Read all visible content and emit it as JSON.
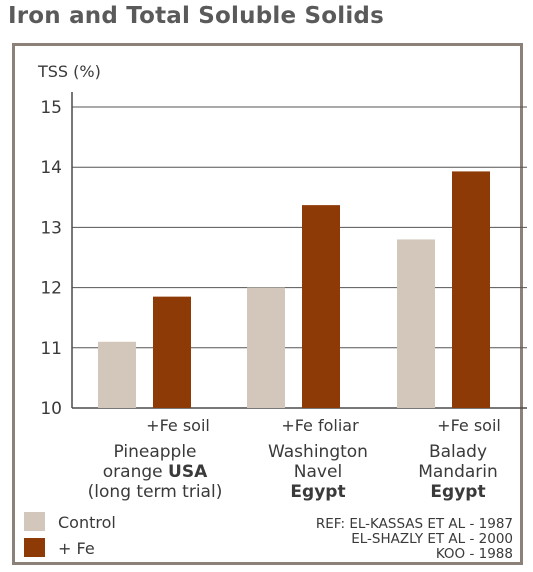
{
  "page_title": "Iron and Total Soluble Solids",
  "colors": {
    "control": "#d2c7ba",
    "fe": "#8e3a07",
    "axis": "#4a4a4a",
    "grid": "#555555",
    "frame": "#8c8179"
  },
  "chart_data": {
    "type": "bar",
    "ylabel": "TSS (%)",
    "ylim": [
      10,
      15
    ],
    "yticks": [
      10,
      11,
      12,
      13,
      14,
      15
    ],
    "grid": true,
    "groups": [
      {
        "treatment": "+Fe soil",
        "line1": "Pineapple",
        "line2_pre": "orange ",
        "line2_bold": "USA",
        "line3": "(long term trial)",
        "line3_bold": false
      },
      {
        "treatment": "+Fe foliar",
        "line1": "Washington",
        "line2_pre": "Navel",
        "line2_bold": "",
        "line3": "Egypt",
        "line3_bold": true
      },
      {
        "treatment": "+Fe soil",
        "line1": "Balady",
        "line2_pre": "Mandarin",
        "line2_bold": "",
        "line3": "Egypt",
        "line3_bold": true
      }
    ],
    "series": [
      {
        "name": "Control",
        "values": [
          11.1,
          12.0,
          12.8
        ]
      },
      {
        "name": "+ Fe",
        "values": [
          11.85,
          13.37,
          13.93
        ]
      }
    ],
    "legend_position": "bottom-left",
    "references": [
      "REF: EL-KASSAS ET AL - 1987",
      "EL-SHAZLY ET AL - 2000",
      "KOO - 1988"
    ]
  }
}
